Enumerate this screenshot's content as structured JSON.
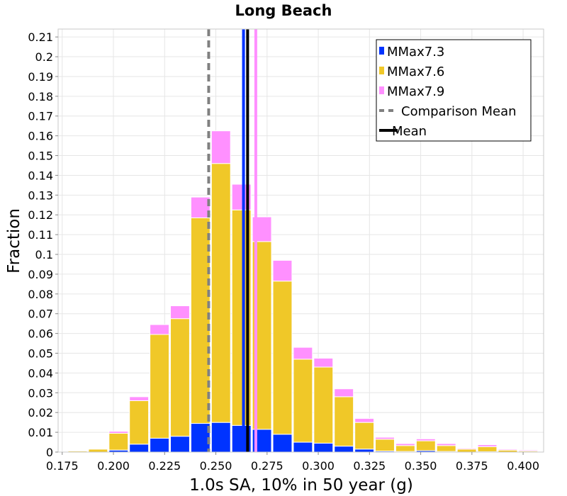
{
  "chart_data": {
    "type": "bar",
    "stacked": true,
    "title": "Long Beach",
    "xlabel": "1.0s SA, 10% in 50 year (g)",
    "ylabel": "Fraction",
    "xlim": [
      0.173,
      0.41
    ],
    "ylim": [
      0,
      0.214
    ],
    "bin_width": 0.01,
    "x_ticks": [
      0.175,
      0.2,
      0.225,
      0.25,
      0.275,
      0.3,
      0.325,
      0.35,
      0.375,
      0.4
    ],
    "x_tick_labels": [
      "0.175",
      "0.200",
      "0.225",
      "0.250",
      "0.275",
      "0.300",
      "0.325",
      "0.350",
      "0.375",
      "0.400"
    ],
    "y_ticks": [
      0,
      0.01,
      0.02,
      0.03,
      0.04,
      0.05,
      0.06,
      0.07,
      0.08,
      0.09,
      0.1,
      0.11,
      0.12,
      0.13,
      0.14,
      0.15,
      0.16,
      0.17,
      0.18,
      0.19,
      0.2,
      0.21
    ],
    "y_tick_labels": [
      "0",
      "0.01",
      "0.02",
      "0.03",
      "0.04",
      "0.05",
      "0.06",
      "0.07",
      "0.08",
      "0.09",
      "0.1",
      "0.11",
      "0.12",
      "0.13",
      "0.14",
      "0.15",
      "0.16",
      "0.17",
      "0.18",
      "0.19",
      "0.2",
      "0.21"
    ],
    "grid": true,
    "legend_position": "top-right",
    "bin_centers": [
      0.1825,
      0.1925,
      0.2025,
      0.2125,
      0.2225,
      0.2325,
      0.2425,
      0.2525,
      0.2625,
      0.2725,
      0.2825,
      0.2925,
      0.3025,
      0.3125,
      0.3225,
      0.3325,
      0.3425,
      0.3525,
      0.3625,
      0.3725,
      0.3825,
      0.3925,
      0.4025
    ],
    "series": [
      {
        "name": "MMax7.3",
        "color": "#0033ff",
        "values": [
          0,
          0,
          0.001,
          0.004,
          0.007,
          0.008,
          0.0145,
          0.015,
          0.0135,
          0.0115,
          0.009,
          0.005,
          0.0045,
          0.003,
          0.0015,
          0.0005,
          0.0003,
          0.0007,
          0.0003,
          0,
          0.0002,
          0,
          0
        ]
      },
      {
        "name": "MMax7.6",
        "color": "#f0c828",
        "values": [
          0.0005,
          0.0015,
          0.0085,
          0.022,
          0.0525,
          0.0595,
          0.104,
          0.131,
          0.109,
          0.095,
          0.0775,
          0.042,
          0.0385,
          0.025,
          0.0135,
          0.006,
          0.003,
          0.005,
          0.003,
          0.0015,
          0.0025,
          0.001,
          0.0005
        ]
      },
      {
        "name": "MMax7.9",
        "color": "#ff90ff",
        "values": [
          0,
          0.0002,
          0.001,
          0.002,
          0.005,
          0.0065,
          0.0105,
          0.0165,
          0.013,
          0.0125,
          0.0105,
          0.006,
          0.0045,
          0.004,
          0.002,
          0.001,
          0.001,
          0.001,
          0.001,
          0.0005,
          0.001,
          0.0005,
          0.0005
        ]
      }
    ],
    "vertical_lines": [
      {
        "label": "Comparison Mean",
        "x": 0.2465,
        "color": "#808080",
        "style": "dashed"
      },
      {
        "label": "",
        "x": 0.2635,
        "color": "#0033ff",
        "style": "solid"
      },
      {
        "label": "",
        "x": 0.2695,
        "color": "#ff90ff",
        "style": "solid"
      },
      {
        "label": "Mean",
        "x": 0.2655,
        "color": "#000000",
        "style": "solid"
      }
    ],
    "legend": [
      {
        "label": "MMax7.3",
        "color": "#0033ff",
        "kind": "box"
      },
      {
        "label": "MMax7.6",
        "color": "#f0c828",
        "kind": "box"
      },
      {
        "label": "MMax7.9",
        "color": "#ff90ff",
        "kind": "box"
      },
      {
        "label": "Comparison Mean",
        "color": "#808080",
        "kind": "dashed"
      },
      {
        "label": "Mean",
        "color": "#000000",
        "kind": "solid"
      }
    ]
  }
}
